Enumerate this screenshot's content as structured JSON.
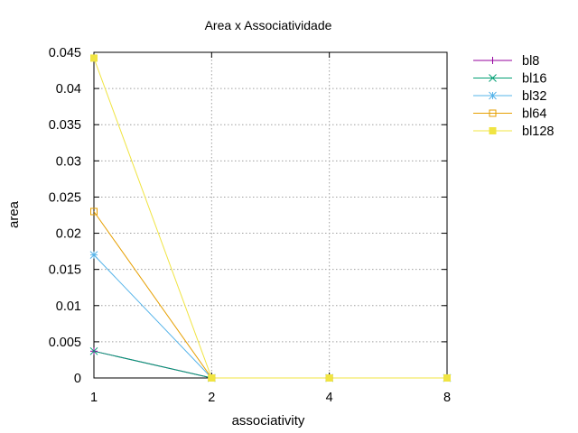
{
  "chart_data": {
    "type": "line",
    "title": "Area x Associatividade",
    "xlabel": "associativity",
    "ylabel": "area",
    "categories": [
      "1",
      "2",
      "4",
      "8"
    ],
    "xlim": [
      1,
      8
    ],
    "ylim": [
      0,
      0.045
    ],
    "yticks": [
      "0",
      "0.005",
      "0.01",
      "0.015",
      "0.02",
      "0.025",
      "0.03",
      "0.035",
      "0.04",
      "0.045"
    ],
    "grid": true,
    "legend_position": "outside top-right",
    "series": [
      {
        "name": "bl8",
        "color": "#94009e",
        "marker": "plus",
        "values": [
          0.0037,
          0.0,
          0.0,
          0.0
        ]
      },
      {
        "name": "bl16",
        "color": "#009e73",
        "marker": "cross",
        "values": [
          0.0037,
          0.0,
          0.0,
          0.0
        ]
      },
      {
        "name": "bl32",
        "color": "#56b4e9",
        "marker": "star",
        "values": [
          0.017,
          0.0,
          0.0,
          0.0
        ]
      },
      {
        "name": "bl64",
        "color": "#e69f00",
        "marker": "open-square",
        "values": [
          0.023,
          0.0,
          0.0,
          0.0
        ]
      },
      {
        "name": "bl128",
        "color": "#f0e442",
        "marker": "filled-square",
        "values": [
          0.0442,
          0.0,
          0.0,
          0.0
        ]
      }
    ]
  }
}
